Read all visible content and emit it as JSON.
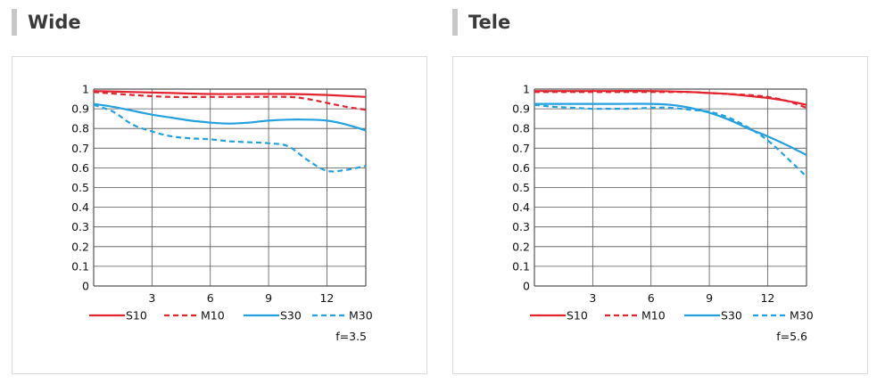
{
  "sections": [
    {
      "title": "Wide"
    },
    {
      "title": "Tele"
    }
  ],
  "chart_data": [
    {
      "type": "line",
      "title": "",
      "xlabel": "",
      "ylabel": "",
      "xlim": [
        0,
        14
      ],
      "ylim": [
        0,
        1
      ],
      "xticks": [
        3,
        6,
        9,
        12
      ],
      "yticks": [
        0,
        0.1,
        0.2,
        0.3,
        0.4,
        0.5,
        0.6,
        0.7,
        0.8,
        0.9,
        1
      ],
      "ytick_labels": [
        "0",
        "0.1",
        "0.2",
        "0.3",
        "0.4",
        "0.5",
        "0.6",
        "0.7",
        "0.8",
        "0.9",
        "1"
      ],
      "grid": true,
      "legend_position": "bottom",
      "note": "f=3.5",
      "series": [
        {
          "name": "S10",
          "color": "#e3232e",
          "dash": false,
          "points": [
            [
              0,
              0.99
            ],
            [
              2,
              0.985
            ],
            [
              4,
              0.98
            ],
            [
              6,
              0.975
            ],
            [
              8,
              0.975
            ],
            [
              10,
              0.975
            ],
            [
              12,
              0.97
            ],
            [
              14,
              0.96
            ]
          ]
        },
        {
          "name": "M10",
          "color": "#e3232e",
          "dash": true,
          "points": [
            [
              0,
              0.985
            ],
            [
              2,
              0.97
            ],
            [
              4,
              0.96
            ],
            [
              6,
              0.96
            ],
            [
              8,
              0.96
            ],
            [
              10,
              0.96
            ],
            [
              11,
              0.95
            ],
            [
              12,
              0.93
            ],
            [
              13,
              0.91
            ],
            [
              14,
              0.895
            ]
          ]
        },
        {
          "name": "S30",
          "color": "#22a0e0",
          "dash": false,
          "points": [
            [
              0,
              0.925
            ],
            [
              1,
              0.91
            ],
            [
              2,
              0.89
            ],
            [
              3,
              0.87
            ],
            [
              4,
              0.855
            ],
            [
              5,
              0.84
            ],
            [
              6,
              0.83
            ],
            [
              7,
              0.825
            ],
            [
              8,
              0.83
            ],
            [
              9,
              0.84
            ],
            [
              10,
              0.845
            ],
            [
              11,
              0.845
            ],
            [
              12,
              0.84
            ],
            [
              13,
              0.82
            ],
            [
              14,
              0.79
            ]
          ]
        },
        {
          "name": "M30",
          "color": "#22a0e0",
          "dash": true,
          "points": [
            [
              0,
              0.92
            ],
            [
              1,
              0.885
            ],
            [
              2,
              0.82
            ],
            [
              3,
              0.785
            ],
            [
              4,
              0.76
            ],
            [
              5,
              0.75
            ],
            [
              6,
              0.745
            ],
            [
              7,
              0.735
            ],
            [
              8,
              0.73
            ],
            [
              9,
              0.725
            ],
            [
              10,
              0.71
            ],
            [
              11,
              0.64
            ],
            [
              12,
              0.585
            ],
            [
              13,
              0.59
            ],
            [
              14,
              0.61
            ]
          ]
        }
      ]
    },
    {
      "type": "line",
      "title": "",
      "xlabel": "",
      "ylabel": "",
      "xlim": [
        0,
        14
      ],
      "ylim": [
        0,
        1
      ],
      "xticks": [
        3,
        6,
        9,
        12
      ],
      "yticks": [
        0,
        0.1,
        0.2,
        0.3,
        0.4,
        0.5,
        0.6,
        0.7,
        0.8,
        0.9,
        1
      ],
      "ytick_labels": [
        "0",
        "0.1",
        "0.2",
        "0.3",
        "0.4",
        "0.5",
        "0.6",
        "0.7",
        "0.8",
        "0.9",
        "1"
      ],
      "grid": true,
      "legend_position": "bottom",
      "note": "f=5.6",
      "series": [
        {
          "name": "S10",
          "color": "#e3232e",
          "dash": false,
          "points": [
            [
              0,
              0.99
            ],
            [
              2,
              0.99
            ],
            [
              4,
              0.99
            ],
            [
              6,
              0.99
            ],
            [
              8,
              0.985
            ],
            [
              9,
              0.98
            ],
            [
              10,
              0.975
            ],
            [
              11,
              0.965
            ],
            [
              12,
              0.955
            ],
            [
              13,
              0.94
            ],
            [
              14,
              0.92
            ]
          ]
        },
        {
          "name": "M10",
          "color": "#e3232e",
          "dash": true,
          "points": [
            [
              0,
              0.985
            ],
            [
              2,
              0.985
            ],
            [
              4,
              0.985
            ],
            [
              6,
              0.985
            ],
            [
              8,
              0.985
            ],
            [
              9,
              0.98
            ],
            [
              10,
              0.975
            ],
            [
              11,
              0.97
            ],
            [
              12,
              0.96
            ],
            [
              13,
              0.94
            ],
            [
              14,
              0.905
            ]
          ]
        },
        {
          "name": "S30",
          "color": "#22a0e0",
          "dash": false,
          "points": [
            [
              0,
              0.925
            ],
            [
              2,
              0.925
            ],
            [
              4,
              0.925
            ],
            [
              6,
              0.925
            ],
            [
              7,
              0.92
            ],
            [
              8,
              0.905
            ],
            [
              9,
              0.88
            ],
            [
              10,
              0.845
            ],
            [
              11,
              0.8
            ],
            [
              12,
              0.76
            ],
            [
              13,
              0.715
            ],
            [
              14,
              0.665
            ]
          ]
        },
        {
          "name": "M30",
          "color": "#22a0e0",
          "dash": true,
          "points": [
            [
              0,
              0.92
            ],
            [
              1,
              0.91
            ],
            [
              2,
              0.905
            ],
            [
              3,
              0.9
            ],
            [
              4,
              0.9
            ],
            [
              5,
              0.9
            ],
            [
              6,
              0.905
            ],
            [
              7,
              0.905
            ],
            [
              8,
              0.895
            ],
            [
              9,
              0.885
            ],
            [
              10,
              0.855
            ],
            [
              11,
              0.805
            ],
            [
              12,
              0.74
            ],
            [
              13,
              0.65
            ],
            [
              14,
              0.555
            ]
          ]
        }
      ]
    }
  ]
}
